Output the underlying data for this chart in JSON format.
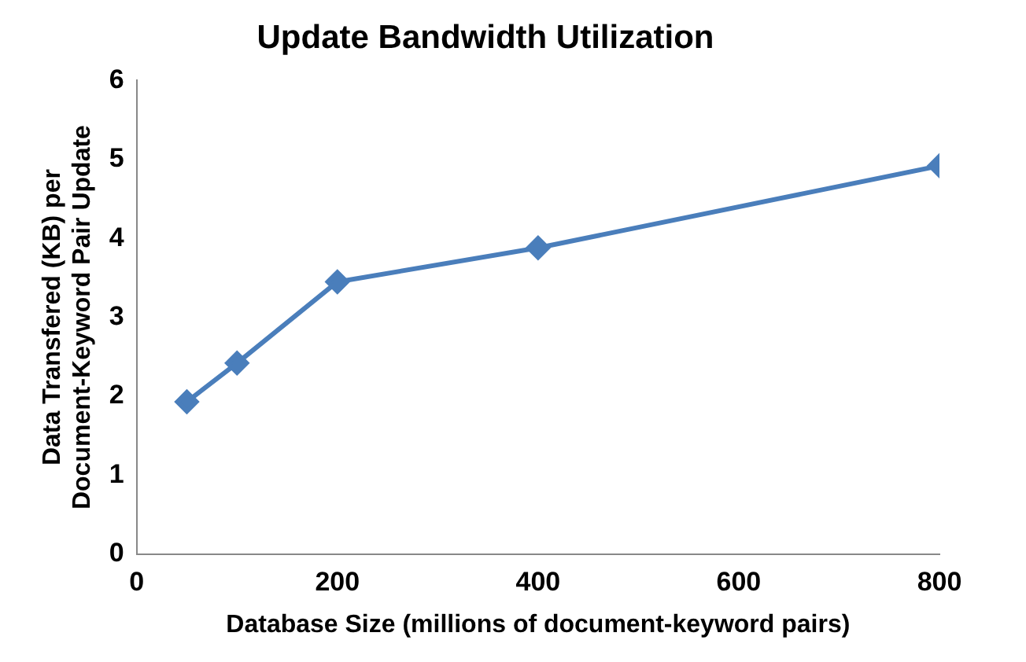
{
  "chart_data": {
    "type": "line",
    "title": "Update Bandwidth Utilization",
    "xlabel": "Database Size (millions of document-keyword pairs)",
    "ylabel": "Data Transfered (KB) per\nDocument-Keyword Pair Update",
    "x": [
      50,
      100,
      200,
      400,
      800
    ],
    "series": [
      {
        "color": "#4a7ebb",
        "values": [
          1.93,
          2.42,
          3.45,
          3.88,
          4.92
        ]
      }
    ],
    "xlim": [
      0,
      800
    ],
    "xticks": [
      0,
      200,
      400,
      600,
      800
    ],
    "ylim": [
      0,
      6
    ],
    "yticks": [
      0,
      1,
      2,
      3,
      4,
      5,
      6
    ],
    "grid": false,
    "legend": false,
    "marker": "diamond",
    "line_style": "solid"
  }
}
